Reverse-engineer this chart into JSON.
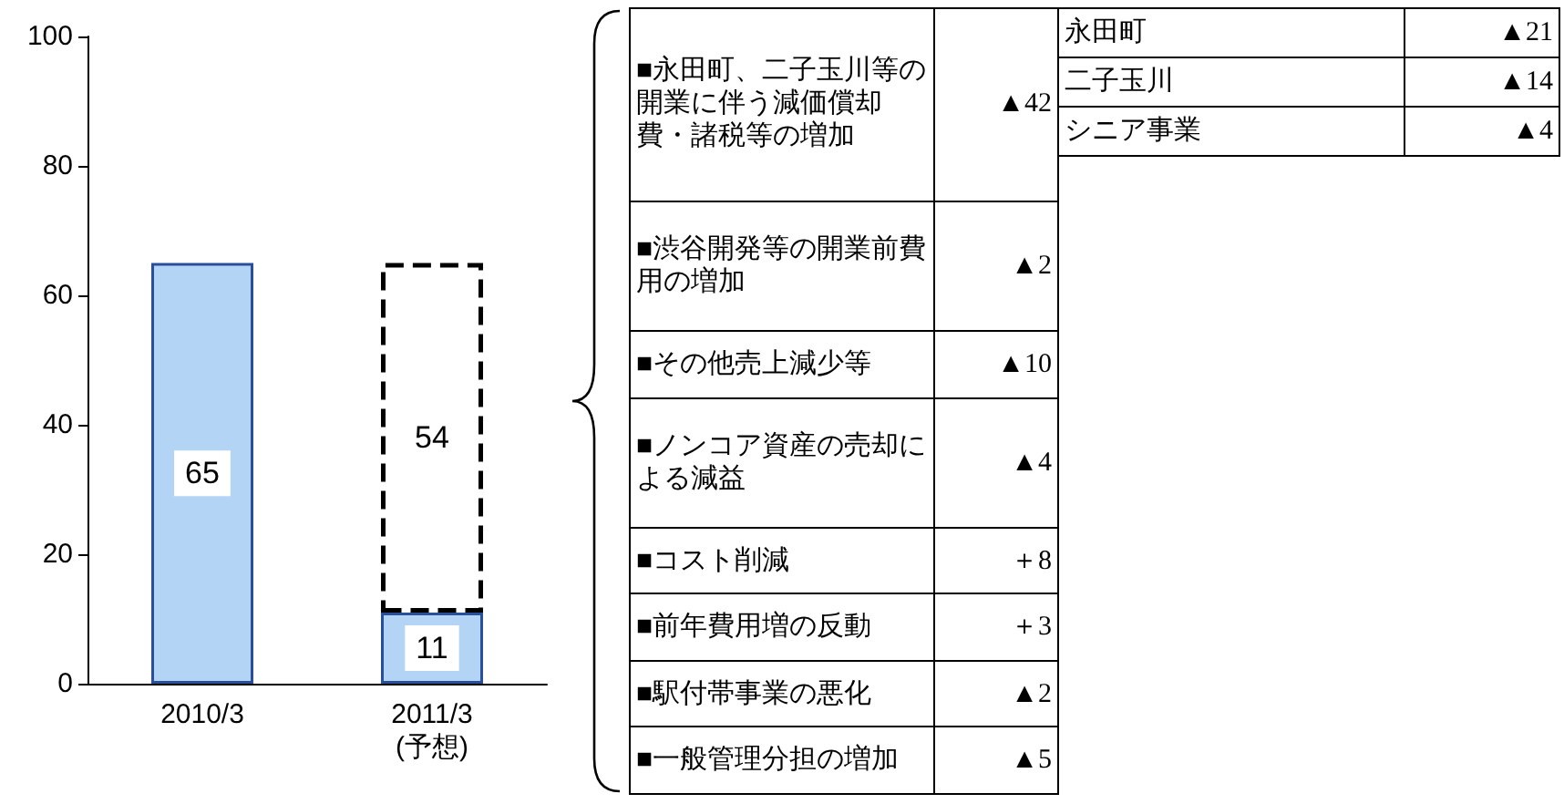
{
  "chart_data": {
    "type": "bar",
    "stacked": true,
    "data_labels": true,
    "grid": false,
    "categories": [
      "2010/3",
      "2011/3\n(予想)"
    ],
    "series": [
      {
        "color": "#b4d4f6",
        "values": [
          65,
          11
        ]
      },
      {
        "color": "#ffffff",
        "line_style": "dashed",
        "values": [
          null,
          54
        ]
      }
    ],
    "ylim": [
      0,
      100
    ],
    "yticks": [
      0,
      20,
      40,
      60,
      80,
      100
    ],
    "annotations": [
      "■永田町、二子玉川等の開業に伴う減価償却費・諸税等の増加",
      "▲42",
      "■渋谷開発等の開業前費用の増加",
      "▲2",
      "■その他売上減少等",
      "▲10",
      "■ノンコア資産の売却による減益",
      "▲4",
      "■コスト削減",
      "＋8",
      "■前年費用増の反動",
      "＋3",
      "■駅付帯事業の悪化",
      "▲2",
      "■一般管理分担の増加",
      "▲5",
      "永田町",
      "▲21",
      "二子玉川",
      "▲14",
      "シニア事業",
      "▲4"
    ]
  }
}
